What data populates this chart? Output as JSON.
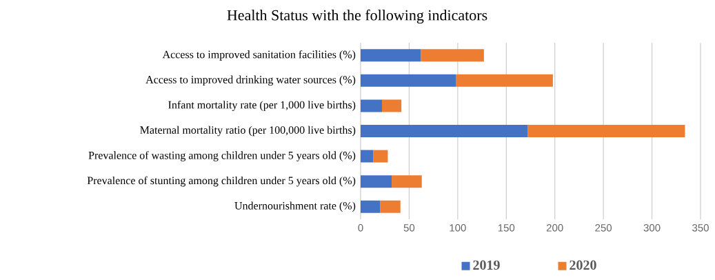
{
  "chart_data": {
    "type": "bar",
    "orientation": "horizontal",
    "stacked": true,
    "title": "Health Status with the following indicators",
    "categories": [
      "Access to improved sanitation facilities (%)",
      "Access to improved drinking water sources (%)",
      "Infant mortality rate (per 1,000 live births)",
      "Maternal mortality ratio (per 100,000 live births)",
      "Prevalence of wasting among children under 5 years old (%)",
      "Prevalence of stunting among children under 5 years old (%)",
      "Undernourishment rate (%)"
    ],
    "series": [
      {
        "name": "2019",
        "color": "#4472c4",
        "values": [
          62,
          98,
          22,
          172,
          13,
          32,
          20
        ]
      },
      {
        "name": "2020",
        "color": "#ed7d31",
        "values": [
          65,
          100,
          20,
          162,
          15,
          31,
          21
        ]
      }
    ],
    "xlim": [
      0,
      350
    ],
    "xticks": [
      0,
      50,
      100,
      150,
      200,
      250,
      300,
      350
    ],
    "grid": "x",
    "legend": "bottom"
  }
}
